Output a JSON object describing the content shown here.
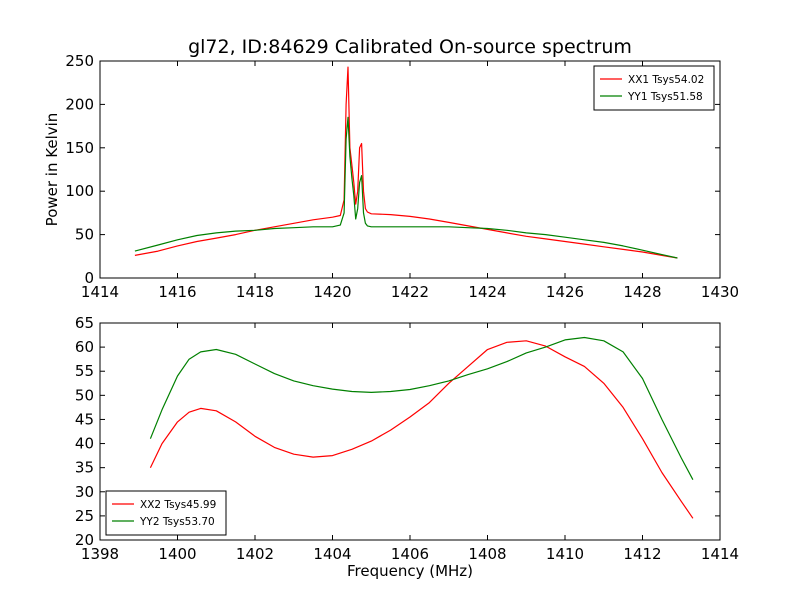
{
  "title": "gl72, ID:84629 Calibrated On-source spectrum",
  "colors": {
    "series1": "#ff0000",
    "series2": "#008000",
    "axes": "#000000",
    "background": "#ffffff"
  },
  "chart_data": [
    {
      "type": "line",
      "title": "gl72, ID:84629 Calibrated On-source spectrum",
      "xlabel": "",
      "ylabel": "Power in Kelvin",
      "xlim": [
        1414,
        1430
      ],
      "ylim": [
        0,
        250
      ],
      "xticks": [
        1414,
        1416,
        1418,
        1420,
        1422,
        1424,
        1426,
        1428,
        1430
      ],
      "yticks": [
        0,
        50,
        100,
        150,
        200,
        250
      ],
      "grid": false,
      "legend_position": "top-right",
      "series": [
        {
          "name": "XX1 Tsys54.02",
          "color": "#ff0000",
          "x": [
            1414.9,
            1415.5,
            1416.0,
            1416.5,
            1417.0,
            1417.5,
            1418.0,
            1418.5,
            1419.0,
            1419.5,
            1420.0,
            1420.2,
            1420.3,
            1420.35,
            1420.4,
            1420.45,
            1420.5,
            1420.55,
            1420.6,
            1420.65,
            1420.7,
            1420.75,
            1420.8,
            1420.85,
            1420.9,
            1421.0,
            1421.5,
            1422.0,
            1422.5,
            1423.0,
            1423.5,
            1424.0,
            1424.5,
            1425.0,
            1425.5,
            1426.0,
            1426.5,
            1427.0,
            1427.5,
            1428.0,
            1428.5,
            1428.9
          ],
          "y": [
            26,
            31,
            37,
            42,
            46,
            50,
            55,
            59,
            63,
            67,
            70,
            72,
            90,
            200,
            243,
            150,
            130,
            110,
            85,
            100,
            150,
            155,
            100,
            80,
            76,
            74,
            73,
            71,
            68,
            64,
            60,
            56,
            52,
            48,
            45,
            42,
            39,
            36,
            33,
            30,
            26,
            23
          ]
        },
        {
          "name": "YY1 Tsys51.58",
          "color": "#008000",
          "x": [
            1414.9,
            1415.5,
            1416.0,
            1416.5,
            1417.0,
            1417.5,
            1418.0,
            1418.5,
            1419.0,
            1419.5,
            1420.0,
            1420.2,
            1420.3,
            1420.35,
            1420.4,
            1420.45,
            1420.5,
            1420.55,
            1420.6,
            1420.65,
            1420.7,
            1420.75,
            1420.8,
            1420.85,
            1420.9,
            1421.0,
            1421.5,
            1422.0,
            1422.5,
            1423.0,
            1423.5,
            1424.0,
            1424.5,
            1425.0,
            1425.5,
            1426.0,
            1426.5,
            1427.0,
            1427.5,
            1428.0,
            1428.5,
            1428.9
          ],
          "y": [
            31,
            38,
            44,
            49,
            52,
            54,
            55,
            57,
            58,
            59,
            59,
            61,
            75,
            160,
            185,
            140,
            115,
            95,
            68,
            80,
            110,
            118,
            75,
            63,
            60,
            59,
            59,
            59,
            59,
            59,
            58,
            57,
            55,
            52,
            50,
            47,
            44,
            41,
            37,
            32,
            27,
            23
          ]
        }
      ]
    },
    {
      "type": "line",
      "title": "",
      "xlabel": "Frequency (MHz)",
      "ylabel": "",
      "xlim": [
        1398,
        1414
      ],
      "ylim": [
        20,
        65
      ],
      "xticks": [
        1398,
        1400,
        1402,
        1404,
        1406,
        1408,
        1410,
        1412,
        1414
      ],
      "yticks": [
        20,
        25,
        30,
        35,
        40,
        45,
        50,
        55,
        60,
        65
      ],
      "grid": false,
      "legend_position": "bottom-left",
      "series": [
        {
          "name": "XX2 Tsys45.99",
          "color": "#ff0000",
          "x": [
            1399.3,
            1399.6,
            1400.0,
            1400.3,
            1400.6,
            1401.0,
            1401.5,
            1402.0,
            1402.5,
            1403.0,
            1403.5,
            1404.0,
            1404.5,
            1405.0,
            1405.5,
            1406.0,
            1406.5,
            1407.0,
            1407.5,
            1408.0,
            1408.5,
            1409.0,
            1409.5,
            1410.0,
            1410.5,
            1411.0,
            1411.5,
            1412.0,
            1412.5,
            1413.0,
            1413.3
          ],
          "y": [
            35,
            40,
            44.5,
            46.5,
            47.3,
            46.8,
            44.5,
            41.5,
            39.2,
            37.8,
            37.2,
            37.5,
            38.8,
            40.5,
            42.8,
            45.5,
            48.5,
            52.5,
            56,
            59.5,
            61,
            61.3,
            60.2,
            58,
            56,
            52.5,
            47.5,
            41,
            34,
            28,
            24.5
          ]
        },
        {
          "name": "YY2 Tsys53.70",
          "color": "#008000",
          "x": [
            1399.3,
            1399.6,
            1400.0,
            1400.3,
            1400.6,
            1401.0,
            1401.5,
            1402.0,
            1402.5,
            1403.0,
            1403.5,
            1404.0,
            1404.5,
            1405.0,
            1405.5,
            1406.0,
            1406.5,
            1407.0,
            1407.5,
            1408.0,
            1408.5,
            1409.0,
            1409.5,
            1410.0,
            1410.5,
            1411.0,
            1411.5,
            1412.0,
            1412.5,
            1413.0,
            1413.3
          ],
          "y": [
            41,
            47,
            54,
            57.5,
            59,
            59.5,
            58.5,
            56.5,
            54.5,
            53,
            52,
            51.3,
            50.8,
            50.6,
            50.8,
            51.2,
            52,
            53,
            54.3,
            55.5,
            57,
            58.8,
            60,
            61.5,
            62,
            61.3,
            59,
            53.5,
            45,
            37,
            32.5
          ]
        }
      ]
    }
  ]
}
